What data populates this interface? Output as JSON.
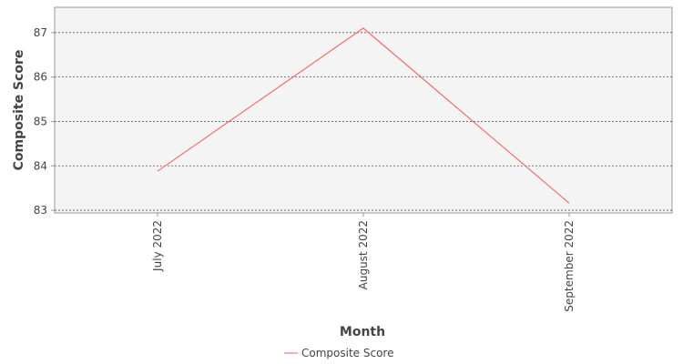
{
  "chart_data": {
    "type": "line",
    "x_label": "Month",
    "y_label": "Composite Score",
    "categories": [
      "July 2022",
      "August 2022",
      "September 2022"
    ],
    "series": [
      {
        "name": "Composite Score",
        "color": "#ff5555",
        "values": [
          83.88,
          87.1,
          83.16
        ]
      }
    ],
    "ylim": [
      82.94,
      87.57
    ],
    "yticks": [
      83,
      84,
      85,
      86,
      87
    ],
    "grid": true,
    "legend": "bottom"
  }
}
